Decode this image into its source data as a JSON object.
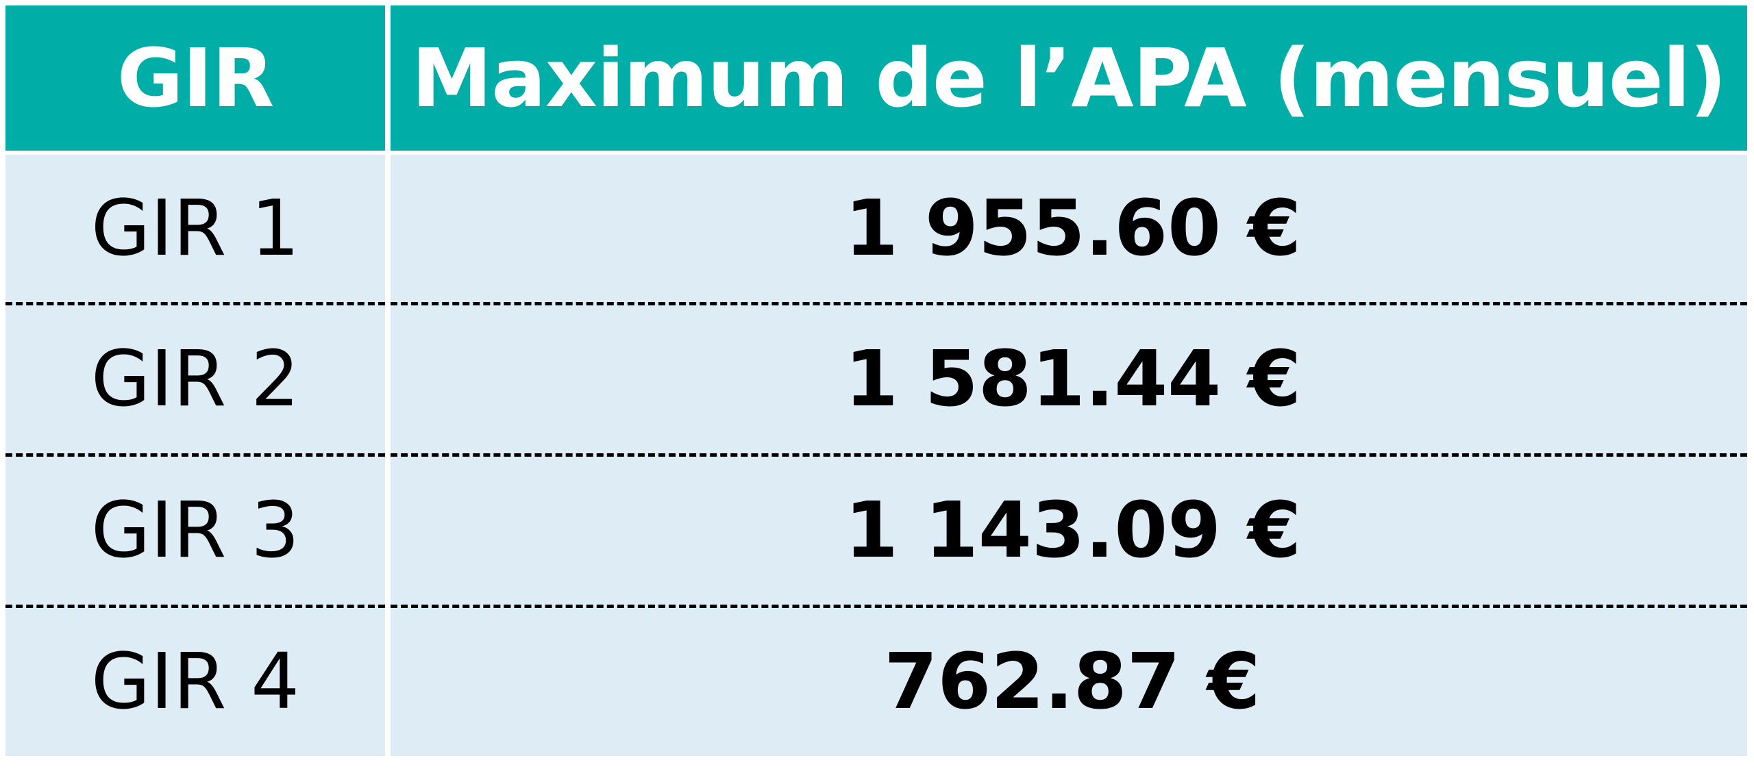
{
  "table": {
    "header": {
      "col1": "GIR",
      "col2": "Maximum de l’APA (mensuel)"
    },
    "rows": [
      {
        "gir": "GIR 1",
        "amount": "1 955.60 €"
      },
      {
        "gir": "GIR 2",
        "amount": "1 581.44 €"
      },
      {
        "gir": "GIR 3",
        "amount": "1 143.09 €"
      },
      {
        "gir": "GIR 4",
        "amount": "762.87 €"
      }
    ],
    "colors": {
      "header_bg": "#00aea7",
      "row_bg": "#deecf5",
      "separator": "#000000"
    }
  }
}
